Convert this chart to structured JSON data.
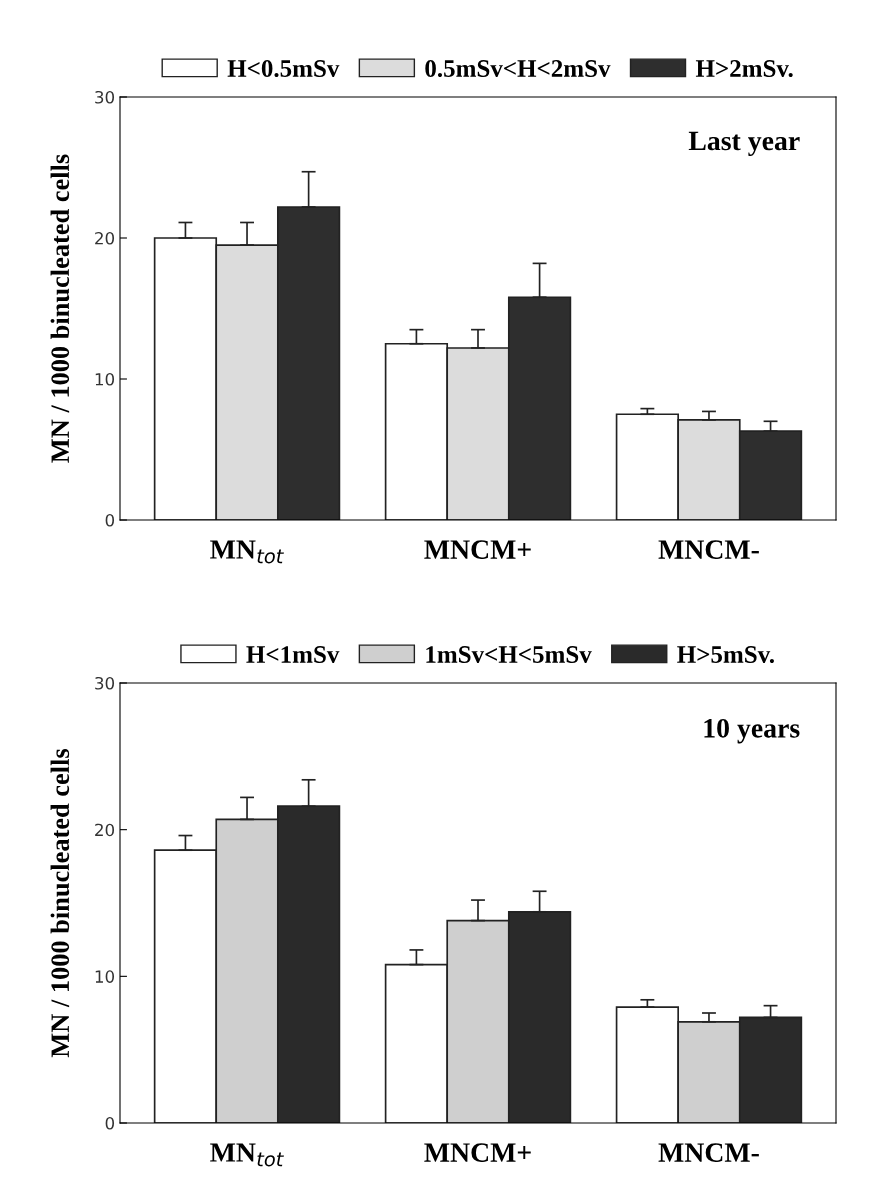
{
  "chart_data": [
    {
      "type": "bar",
      "title": "Last year",
      "ylabel": "MN / 1000 binucleated cells",
      "categories": [
        "MN$_{tot}$",
        "MNCM+",
        "MNCM-"
      ],
      "ylim": [
        0,
        30
      ],
      "yticks": [
        0,
        10,
        20,
        30
      ],
      "legend": "top",
      "grid": false,
      "series": [
        {
          "name": "H<0.5mSv",
          "color": "#ffffff",
          "values": [
            20.0,
            12.5,
            7.5
          ],
          "errors": [
            [
              20.0,
              21.1
            ],
            [
              12.5,
              13.5
            ],
            [
              7.5,
              7.9
            ]
          ]
        },
        {
          "name": "0.5mSv<H<2mSv",
          "color": "#dcdcdc",
          "values": [
            19.5,
            12.2,
            7.1
          ],
          "errors": [
            [
              19.5,
              21.1
            ],
            [
              12.2,
              13.5
            ],
            [
              7.1,
              7.7
            ]
          ]
        },
        {
          "name": "H>2mSv.",
          "color": "#2e2e2e",
          "values": [
            22.2,
            15.8,
            6.3
          ],
          "errors": [
            [
              22.2,
              24.7
            ],
            [
              15.8,
              18.2
            ],
            [
              6.3,
              7.0
            ]
          ]
        }
      ]
    },
    {
      "type": "bar",
      "title": "10 years",
      "ylabel": "MN / 1000 binucleated cells",
      "categories": [
        "MN$_{tot}$",
        "MNCM+",
        "MNCM-"
      ],
      "ylim": [
        0,
        30
      ],
      "yticks": [
        0,
        10,
        20,
        30
      ],
      "legend": "top",
      "grid": false,
      "series": [
        {
          "name": "H<1mSv",
          "color": "#ffffff",
          "values": [
            18.6,
            10.8,
            7.9
          ],
          "errors": [
            [
              18.6,
              19.6
            ],
            [
              10.8,
              11.8
            ],
            [
              7.9,
              8.4
            ]
          ]
        },
        {
          "name": "1mSv<H<5mSv",
          "color": "#cfcfcf",
          "values": [
            20.7,
            13.8,
            6.9
          ],
          "errors": [
            [
              20.7,
              22.2
            ],
            [
              13.8,
              15.2
            ],
            [
              6.9,
              7.5
            ]
          ]
        },
        {
          "name": "H>5mSv.",
          "color": "#2a2a2a",
          "values": [
            21.6,
            14.4,
            7.2
          ],
          "errors": [
            [
              21.6,
              23.4
            ],
            [
              14.4,
              15.8
            ],
            [
              7.2,
              8.0
            ]
          ]
        }
      ]
    }
  ]
}
